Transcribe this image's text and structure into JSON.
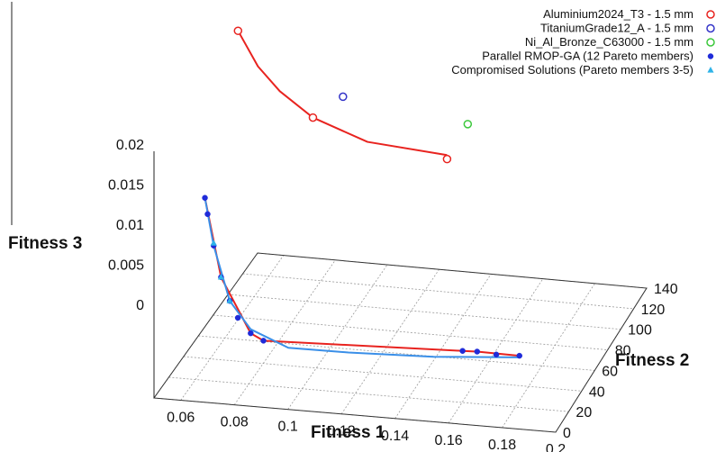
{
  "chart_data": {
    "type": "scatter",
    "projection": "3d",
    "xlabel": "Fitness 1",
    "ylabel": "Fitness 2",
    "zlabel": "Fitness 3",
    "x_ticks": [
      "0.06",
      "0.08",
      "0.1",
      "0.12",
      "0.14",
      "0.16",
      "0.18",
      "0.2"
    ],
    "y_ticks": [
      "0",
      "20",
      "40",
      "60",
      "80",
      "100",
      "120",
      "140"
    ],
    "z_ticks": [
      "0",
      "0.005",
      "0.01",
      "0.015",
      "0.02"
    ],
    "xlim": [
      0.05,
      0.2
    ],
    "ylim": [
      0,
      140
    ],
    "zlim": [
      0,
      0.025
    ],
    "grid": true,
    "legend_position": "top-right",
    "series": [
      {
        "name": "Aluminium2024_T3    - 1.5 mm",
        "color": "#e8231f",
        "marker": "open-circle",
        "points": [
          [
            0.065,
            60,
            0.0385
          ],
          [
            0.092,
            65,
            0.0278
          ],
          [
            0.135,
            95,
            0.02
          ]
        ]
      },
      {
        "name": "TitaniumGrade12_A    - 1.5 mm",
        "color": "#3434c8",
        "marker": "open-circle",
        "points": [
          [
            0.098,
            85,
            0.028
          ]
        ]
      },
      {
        "name": "Ni_Al_Bronze_C63000 - 1.5 mm",
        "color": "#3cc83c",
        "marker": "open-circle",
        "points": [
          [
            0.135,
            125,
            0.0205
          ]
        ]
      },
      {
        "name": "Parallel RMOP-GA (12 Pareto members)",
        "color": "#1f2bd9",
        "marker": "filled-circle",
        "points": [
          [
            0.063,
            22,
            0.0225
          ],
          [
            0.064,
            22,
            0.0205
          ],
          [
            0.066,
            23,
            0.0165
          ],
          [
            0.0685,
            24,
            0.0125
          ],
          [
            0.0715,
            25,
            0.0095
          ],
          [
            0.074,
            27,
            0.0072
          ],
          [
            0.078,
            30,
            0.005
          ],
          [
            0.082,
            33,
            0.0038
          ],
          [
            0.15,
            60,
            0.001
          ],
          [
            0.155,
            62,
            0.0008
          ],
          [
            0.162,
            63,
            0.0005
          ],
          [
            0.17,
            66,
            0.0002
          ]
        ]
      },
      {
        "name": "Compromised Solutions (Pareto members 3-5)",
        "color": "#2fb3e8",
        "marker": "filled-triangle",
        "points": [
          [
            0.066,
            23,
            0.0168
          ],
          [
            0.0685,
            24,
            0.0125
          ],
          [
            0.0715,
            25,
            0.0095
          ]
        ]
      }
    ],
    "curves": [
      {
        "color": "#e8231f",
        "points": [
          [
            0.065,
            60,
            0.0385
          ],
          [
            0.072,
            62,
            0.034
          ],
          [
            0.08,
            63,
            0.031
          ],
          [
            0.092,
            65,
            0.0278
          ],
          [
            0.11,
            75,
            0.024
          ],
          [
            0.135,
            95,
            0.0205
          ]
        ]
      },
      {
        "color": "#e8231f",
        "points": [
          [
            0.063,
            22,
            0.0225
          ],
          [
            0.0685,
            24,
            0.0125
          ],
          [
            0.078,
            30,
            0.005
          ],
          [
            0.082,
            33,
            0.0038
          ],
          [
            0.15,
            60,
            0.001
          ],
          [
            0.155,
            62,
            0.0008
          ],
          [
            0.17,
            66,
            0.0002
          ]
        ]
      },
      {
        "color": "#3a8fe8",
        "points": [
          [
            0.063,
            22,
            0.0225
          ],
          [
            0.066,
            23,
            0.0165
          ],
          [
            0.0715,
            25,
            0.0095
          ],
          [
            0.078,
            30,
            0.0055
          ],
          [
            0.09,
            38,
            0.0025
          ],
          [
            0.11,
            48,
            0.0012
          ],
          [
            0.14,
            56,
            0.0005
          ],
          [
            0.17,
            66,
            0.0
          ]
        ]
      }
    ]
  }
}
